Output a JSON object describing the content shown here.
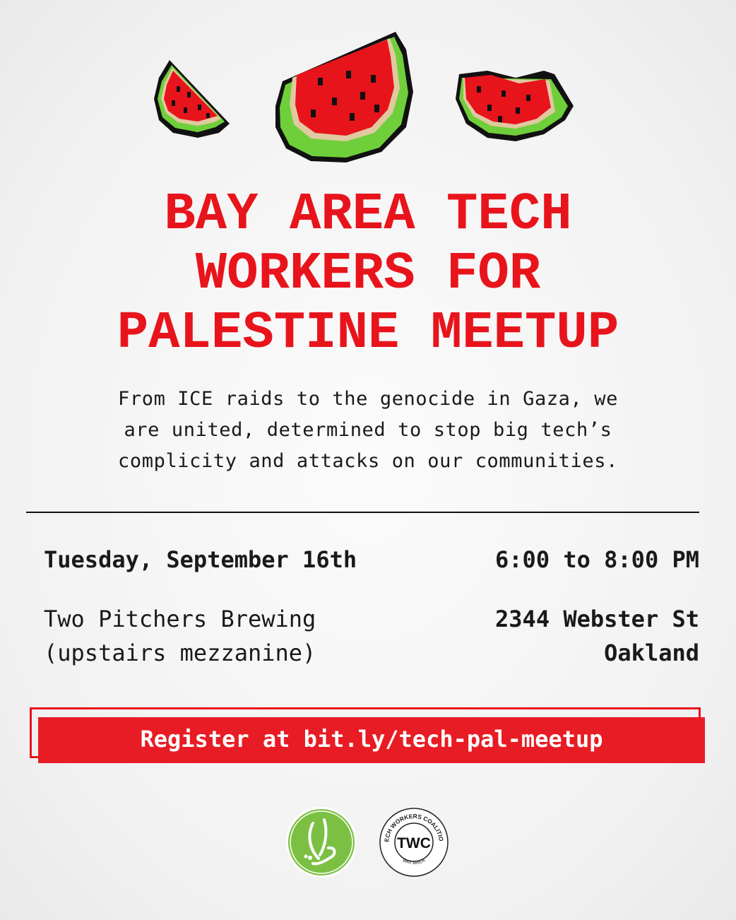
{
  "title_lines": [
    "BAY AREA TECH",
    "WORKERS FOR",
    "PALESTINE MEETUP"
  ],
  "intro_lines": [
    "From ICE raids to the genocide in Gaza, we",
    "are united, determined to stop big tech’s",
    "complicity and attacks on our communities."
  ],
  "event": {
    "date": "Tuesday, September 16th",
    "time": "6:00 to 8:00 PM",
    "venue": "Two Pitchers Brewing",
    "venue_note": "(upstairs mezzanine)",
    "street": "2344 Webster St",
    "city": "Oakland"
  },
  "register_label": "Register at bit.ly/tech-pal-meetup",
  "logos": {
    "left": {
      "icon": "arabic-calligraphy-logo"
    },
    "right": {
      "icon": "tech-workers-coalition-logo",
      "ring_text": "TECH WORKERS COALITION",
      "center": "TWC",
      "bottom": "BAY AREA"
    }
  },
  "colors": {
    "accent_red": "#e8141c",
    "watermelon_green": "#5ec23a",
    "logo_green": "#7cc043"
  }
}
